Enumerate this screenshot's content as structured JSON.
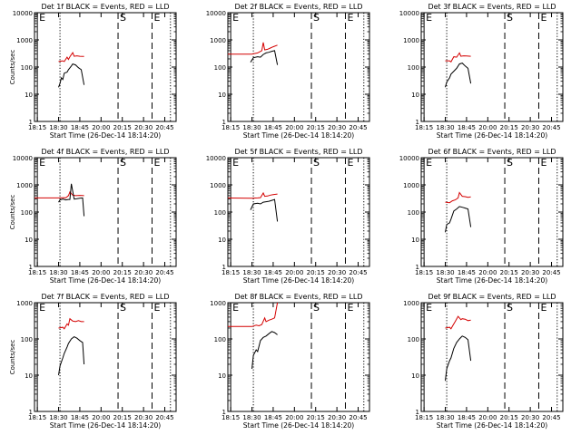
{
  "chart_data": [
    {
      "type": "line",
      "title": "Det 1f BLACK = Events, RED = LLD",
      "xlabel": "Start Time (26-Dec-14 18:14:20)",
      "ylabel": "Counts/sec",
      "yscale": "log",
      "xlim": [
        "18:13",
        "20:53"
      ],
      "ylim": [
        1,
        10000
      ],
      "x_tick_labels": [
        "18:15",
        "18:30",
        "18:45",
        "20:00",
        "20:15",
        "20:30",
        "20:45"
      ],
      "y_tick_labels": [
        "1",
        "10",
        "100",
        "1000",
        "10000"
      ],
      "markers": [
        {
          "label": "E",
          "x": "18:15",
          "style": "solid"
        },
        {
          "label": "",
          "x": "18:31",
          "style": "dotted"
        },
        {
          "label": "S",
          "x": "20:12",
          "style": "dashed"
        },
        {
          "label": "E",
          "x": "20:36",
          "style": "dashed"
        },
        {
          "label": "",
          "x": "20:49",
          "style": "dotted"
        }
      ],
      "series": [
        {
          "color": "#d40000",
          "x": [
            "18:30",
            "18:33",
            "18:34",
            "18:36",
            "18:37",
            "18:38",
            "18:40",
            "18:41",
            "18:43",
            "18:45",
            "18:48"
          ],
          "values": [
            160,
            170,
            160,
            230,
            190,
            240,
            340,
            250,
            260,
            250,
            245
          ]
        },
        {
          "color": "#000000",
          "x": [
            "18:30",
            "18:31",
            "18:32",
            "18:33",
            "18:34",
            "18:36",
            "18:37",
            "18:39",
            "18:40",
            "18:42",
            "18:44",
            "18:46",
            "18:48"
          ],
          "values": [
            18,
            25,
            40,
            35,
            60,
            65,
            80,
            110,
            130,
            120,
            95,
            80,
            22
          ]
        }
      ]
    },
    {
      "type": "line",
      "title": "Det 2f BLACK = Events, RED = LLD",
      "xlabel": "Start Time (26-Dec-14 18:14:20)",
      "ylabel": "",
      "yscale": "log",
      "xlim": [
        "18:13",
        "20:53"
      ],
      "ylim": [
        1,
        10000
      ],
      "x_tick_labels": [
        "18:15",
        "18:30",
        "18:45",
        "20:00",
        "20:15",
        "20:30",
        "20:45"
      ],
      "y_tick_labels": [
        "1",
        "10",
        "100",
        "1000",
        "10000"
      ],
      "markers": [
        {
          "label": "E",
          "x": "18:15",
          "style": "solid"
        },
        {
          "label": "",
          "x": "18:31",
          "style": "dotted"
        },
        {
          "label": "S",
          "x": "20:12",
          "style": "dashed"
        },
        {
          "label": "E",
          "x": "20:36",
          "style": "dashed"
        },
        {
          "label": "",
          "x": "20:49",
          "style": "dotted"
        }
      ],
      "series": [
        {
          "color": "#d40000",
          "x": [
            "18:13",
            "18:30",
            "18:34",
            "18:37",
            "18:38",
            "18:39",
            "18:41",
            "18:43",
            "18:45",
            "18:48"
          ],
          "values": [
            300,
            300,
            330,
            400,
            800,
            430,
            450,
            500,
            560,
            640
          ]
        },
        {
          "color": "#000000",
          "x": [
            "18:29",
            "18:31",
            "18:34",
            "18:36",
            "18:38",
            "18:40",
            "18:42",
            "18:44",
            "18:46",
            "18:48"
          ],
          "values": [
            150,
            220,
            240,
            230,
            290,
            330,
            350,
            380,
            400,
            120
          ]
        }
      ]
    },
    {
      "type": "line",
      "title": "Det 3f BLACK = Events, RED = LLD",
      "xlabel": "Start Time (26-Dec-14 18:14:20)",
      "ylabel": "",
      "yscale": "log",
      "xlim": [
        "18:13",
        "20:53"
      ],
      "ylim": [
        1,
        10000
      ],
      "x_tick_labels": [
        "18:15",
        "18:30",
        "18:45",
        "20:00",
        "20:15",
        "20:30",
        "20:45"
      ],
      "y_tick_labels": [
        "1",
        "10",
        "100",
        "1000",
        "10000"
      ],
      "markers": [
        {
          "label": "E",
          "x": "18:15",
          "style": "solid"
        },
        {
          "label": "",
          "x": "18:31",
          "style": "dotted"
        },
        {
          "label": "S",
          "x": "20:12",
          "style": "dashed"
        },
        {
          "label": "E",
          "x": "20:36",
          "style": "dashed"
        },
        {
          "label": "",
          "x": "20:49",
          "style": "dotted"
        }
      ],
      "series": [
        {
          "color": "#d40000",
          "x": [
            "18:30",
            "18:33",
            "18:34",
            "18:36",
            "18:38",
            "18:40",
            "18:41",
            "18:43",
            "18:45",
            "18:48"
          ],
          "values": [
            170,
            170,
            155,
            240,
            230,
            330,
            250,
            260,
            255,
            250
          ]
        },
        {
          "color": "#000000",
          "x": [
            "18:30",
            "18:31",
            "18:33",
            "18:34",
            "18:36",
            "18:38",
            "18:40",
            "18:42",
            "18:44",
            "18:46",
            "18:48"
          ],
          "values": [
            18,
            28,
            40,
            55,
            70,
            90,
            130,
            140,
            110,
            90,
            25
          ]
        }
      ]
    },
    {
      "type": "line",
      "title": "Det 4f BLACK = Events, RED = LLD",
      "xlabel": "Start Time (26-Dec-14 18:14:20)",
      "ylabel": "Counts/sec",
      "yscale": "log",
      "xlim": [
        "18:13",
        "20:53"
      ],
      "ylim": [
        1,
        10000
      ],
      "x_tick_labels": [
        "18:15",
        "18:30",
        "18:45",
        "20:00",
        "20:15",
        "20:30",
        "20:45"
      ],
      "y_tick_labels": [
        "1",
        "10",
        "100",
        "1000",
        "10000"
      ],
      "markers": [
        {
          "label": "E",
          "x": "18:15",
          "style": "solid"
        },
        {
          "label": "",
          "x": "18:31",
          "style": "dotted"
        },
        {
          "label": "S",
          "x": "20:12",
          "style": "dashed"
        },
        {
          "label": "E",
          "x": "20:36",
          "style": "dashed"
        },
        {
          "label": "",
          "x": "20:49",
          "style": "dotted"
        }
      ],
      "series": [
        {
          "color": "#d40000",
          "x": [
            "18:13",
            "18:30",
            "18:34",
            "18:35",
            "18:37",
            "18:38",
            "18:40",
            "18:42",
            "18:45",
            "18:48"
          ],
          "values": [
            330,
            330,
            340,
            330,
            400,
            550,
            420,
            400,
            410,
            400
          ]
        },
        {
          "color": "#000000",
          "x": [
            "18:30",
            "18:31",
            "18:33",
            "18:35",
            "18:37",
            "18:38",
            "18:39",
            "18:41",
            "18:43",
            "18:45",
            "18:47",
            "18:48"
          ],
          "values": [
            230,
            280,
            300,
            280,
            290,
            290,
            1100,
            300,
            310,
            320,
            330,
            70
          ]
        }
      ]
    },
    {
      "type": "line",
      "title": "Det 5f BLACK = Events, RED = LLD",
      "xlabel": "Start Time (26-Dec-14 18:14:20)",
      "ylabel": "",
      "yscale": "log",
      "xlim": [
        "18:13",
        "20:53"
      ],
      "ylim": [
        1,
        10000
      ],
      "x_tick_labels": [
        "18:15",
        "18:30",
        "18:45",
        "20:00",
        "20:15",
        "20:30",
        "20:45"
      ],
      "y_tick_labels": [
        "1",
        "10",
        "100",
        "1000",
        "10000"
      ],
      "markers": [
        {
          "label": "E",
          "x": "18:15",
          "style": "solid"
        },
        {
          "label": "",
          "x": "18:31",
          "style": "dotted"
        },
        {
          "label": "S",
          "x": "20:12",
          "style": "dashed"
        },
        {
          "label": "E",
          "x": "20:36",
          "style": "dashed"
        },
        {
          "label": "",
          "x": "20:49",
          "style": "dotted"
        }
      ],
      "series": [
        {
          "color": "#d40000",
          "x": [
            "18:13",
            "18:30",
            "18:34",
            "18:36",
            "18:38",
            "18:39",
            "18:41",
            "18:43",
            "18:45",
            "18:48"
          ],
          "values": [
            330,
            320,
            330,
            340,
            500,
            380,
            390,
            420,
            440,
            460
          ]
        },
        {
          "color": "#000000",
          "x": [
            "18:29",
            "18:31",
            "18:34",
            "18:36",
            "18:38",
            "18:40",
            "18:42",
            "18:44",
            "18:46",
            "18:48"
          ],
          "values": [
            120,
            200,
            210,
            200,
            230,
            240,
            250,
            270,
            290,
            45
          ]
        }
      ]
    },
    {
      "type": "line",
      "title": "Det 6f BLACK = Events, RED = LLD",
      "xlabel": "Start Time (26-Dec-14 18:14:20)",
      "ylabel": "",
      "yscale": "log",
      "xlim": [
        "18:13",
        "20:53"
      ],
      "ylim": [
        1,
        10000
      ],
      "x_tick_labels": [
        "18:15",
        "18:30",
        "18:45",
        "20:00",
        "20:15",
        "20:30",
        "20:45"
      ],
      "y_tick_labels": [
        "1",
        "10",
        "100",
        "1000",
        "10000"
      ],
      "markers": [
        {
          "label": "E",
          "x": "18:15",
          "style": "solid"
        },
        {
          "label": "",
          "x": "18:31",
          "style": "dotted"
        },
        {
          "label": "S",
          "x": "20:12",
          "style": "dashed"
        },
        {
          "label": "E",
          "x": "20:36",
          "style": "dashed"
        },
        {
          "label": "",
          "x": "20:49",
          "style": "dotted"
        }
      ],
      "series": [
        {
          "color": "#d40000",
          "x": [
            "18:30",
            "18:33",
            "18:35",
            "18:37",
            "18:39",
            "18:40",
            "18:42",
            "18:44",
            "18:46",
            "18:48"
          ],
          "values": [
            230,
            220,
            260,
            280,
            330,
            520,
            380,
            370,
            350,
            360
          ]
        },
        {
          "color": "#000000",
          "x": [
            "18:30",
            "18:31",
            "18:33",
            "18:34",
            "18:36",
            "18:38",
            "18:40",
            "18:42",
            "18:44",
            "18:46",
            "18:48"
          ],
          "values": [
            18,
            35,
            40,
            55,
            110,
            130,
            160,
            150,
            140,
            130,
            28
          ]
        }
      ]
    },
    {
      "type": "line",
      "title": "Det 7f BLACK = Events, RED = LLD",
      "xlabel": "Start Time (26-Dec-14 18:14:20)",
      "ylabel": "Counts/sec",
      "yscale": "log",
      "xlim": [
        "18:13",
        "20:53"
      ],
      "ylim": [
        1,
        1000
      ],
      "x_tick_labels": [
        "18:15",
        "18:30",
        "18:45",
        "20:00",
        "20:15",
        "20:30",
        "20:45"
      ],
      "y_tick_labels": [
        "1",
        "10",
        "100",
        "1000"
      ],
      "markers": [
        {
          "label": "E",
          "x": "18:15",
          "style": "solid"
        },
        {
          "label": "",
          "x": "18:31",
          "style": "dotted"
        },
        {
          "label": "S",
          "x": "20:12",
          "style": "dashed"
        },
        {
          "label": "E",
          "x": "20:36",
          "style": "dashed"
        },
        {
          "label": "",
          "x": "20:49",
          "style": "dotted"
        }
      ],
      "series": [
        {
          "color": "#d40000",
          "x": [
            "18:30",
            "18:33",
            "18:34",
            "18:36",
            "18:37",
            "18:38",
            "18:40",
            "18:42",
            "18:44",
            "18:46",
            "18:48"
          ],
          "values": [
            200,
            210,
            190,
            260,
            240,
            360,
            310,
            300,
            320,
            300,
            300
          ]
        },
        {
          "color": "#000000",
          "x": [
            "18:30",
            "18:31",
            "18:33",
            "18:34",
            "18:36",
            "18:37",
            "18:39",
            "18:41",
            "18:43",
            "18:45",
            "18:47",
            "18:48"
          ],
          "values": [
            10,
            18,
            30,
            40,
            60,
            75,
            100,
            115,
            105,
            90,
            80,
            20
          ]
        }
      ]
    },
    {
      "type": "line",
      "title": "Det 8f BLACK = Events, RED = LLD",
      "xlabel": "Start Time (26-Dec-14 18:14:20)",
      "ylabel": "",
      "yscale": "log",
      "xlim": [
        "18:13",
        "20:53"
      ],
      "ylim": [
        1,
        1000
      ],
      "x_tick_labels": [
        "18:15",
        "18:30",
        "18:45",
        "20:00",
        "20:15",
        "20:30",
        "20:45"
      ],
      "y_tick_labels": [
        "1",
        "10",
        "100",
        "1000"
      ],
      "markers": [
        {
          "label": "E",
          "x": "18:15",
          "style": "solid"
        },
        {
          "label": "",
          "x": "18:31",
          "style": "dotted"
        },
        {
          "label": "S",
          "x": "20:12",
          "style": "dashed"
        },
        {
          "label": "E",
          "x": "20:36",
          "style": "dashed"
        },
        {
          "label": "",
          "x": "20:49",
          "style": "dotted"
        }
      ],
      "series": [
        {
          "color": "#d40000",
          "x": [
            "18:13",
            "18:30",
            "18:33",
            "18:35",
            "18:37",
            "18:39",
            "18:40",
            "18:42",
            "18:44",
            "18:46",
            "18:48"
          ],
          "values": [
            220,
            220,
            240,
            230,
            250,
            380,
            300,
            330,
            350,
            380,
            1000
          ]
        },
        {
          "color": "#000000",
          "x": [
            "18:30",
            "18:31",
            "18:33",
            "18:34",
            "18:36",
            "18:38",
            "18:40",
            "18:42",
            "18:44",
            "18:46",
            "18:48"
          ],
          "values": [
            15,
            35,
            50,
            45,
            90,
            110,
            120,
            140,
            160,
            150,
            130
          ]
        }
      ]
    },
    {
      "type": "line",
      "title": "Det 9f BLACK = Events, RED = LLD",
      "xlabel": "Start Time (26-Dec-14 18:14:20)",
      "ylabel": "",
      "yscale": "log",
      "xlim": [
        "18:13",
        "20:53"
      ],
      "ylim": [
        1,
        1000
      ],
      "x_tick_labels": [
        "18:15",
        "18:30",
        "18:45",
        "20:00",
        "20:15",
        "20:30",
        "20:45"
      ],
      "y_tick_labels": [
        "1",
        "10",
        "100",
        "1000"
      ],
      "markers": [
        {
          "label": "E",
          "x": "18:15",
          "style": "solid"
        },
        {
          "label": "",
          "x": "18:31",
          "style": "dotted"
        },
        {
          "label": "S",
          "x": "20:12",
          "style": "dashed"
        },
        {
          "label": "E",
          "x": "20:36",
          "style": "dashed"
        },
        {
          "label": "",
          "x": "20:49",
          "style": "dotted"
        }
      ],
      "series": [
        {
          "color": "#d40000",
          "x": [
            "18:30",
            "18:33",
            "18:34",
            "18:36",
            "18:37",
            "18:39",
            "18:41",
            "18:42",
            "18:44",
            "18:46",
            "18:48"
          ],
          "values": [
            200,
            210,
            190,
            260,
            300,
            420,
            340,
            360,
            350,
            320,
            330
          ]
        },
        {
          "color": "#000000",
          "x": [
            "18:30",
            "18:31",
            "18:33",
            "18:34",
            "18:36",
            "18:38",
            "18:40",
            "18:42",
            "18:44",
            "18:46",
            "18:48"
          ],
          "values": [
            7,
            15,
            25,
            30,
            55,
            80,
            100,
            120,
            110,
            95,
            25
          ]
        }
      ]
    }
  ]
}
